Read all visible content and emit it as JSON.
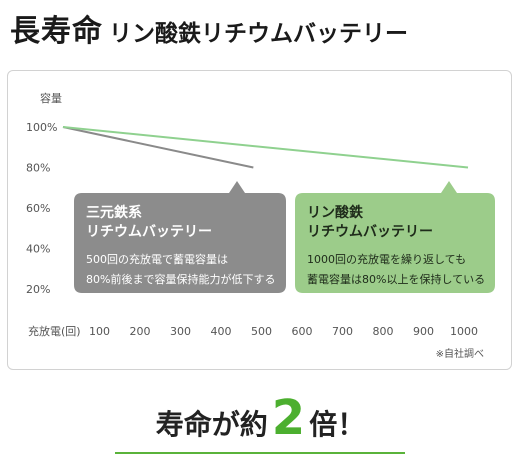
{
  "header": {
    "title_main": "長寿命",
    "title_sub": "リン酸鉄リチウムバッテリー"
  },
  "colors": {
    "green_line": "#8fd18f",
    "gray_line": "#8a8a8a",
    "gray_box": "#8c8c8c",
    "green_box": "#9ccc8a",
    "accent_green": "#4caf2f",
    "axis_text": "#555555"
  },
  "chart_data": {
    "type": "line",
    "ylabel": "容量",
    "xlabel": "充放電(回)",
    "x_ticks": [
      100,
      200,
      300,
      400,
      500,
      600,
      700,
      800,
      900,
      1000
    ],
    "y_ticks": [
      "100%",
      "80%",
      "60%",
      "40%",
      "20%"
    ],
    "y_tick_values": [
      100,
      80,
      60,
      40,
      20
    ],
    "xlim": [
      0,
      1000
    ],
    "ylim": [
      20,
      100
    ],
    "grid": false,
    "series": [
      {
        "name": "三元鉄系リチウムバッテリー",
        "color": "#8a8a8a",
        "points": [
          [
            0,
            100
          ],
          [
            470,
            80
          ]
        ]
      },
      {
        "name": "リン酸鉄リチウムバッテリー",
        "color": "#8fd18f",
        "points": [
          [
            0,
            100
          ],
          [
            1000,
            80
          ]
        ]
      }
    ],
    "annotations": {
      "gray_box": {
        "title_line1": "三元鉄系",
        "title_line2": "リチウムバッテリー",
        "body_line1": "500回の充放電で蓄電容量は",
        "body_line2": "80%前後まで容量保持能力が低下する"
      },
      "green_box": {
        "title_line1": "リン酸鉄",
        "title_line2": "リチウムバッテリー",
        "body_line1": "1000回の充放電を繰り返しても",
        "body_line2": "蓄電容量は80%以上を保持している"
      },
      "source_note": "※自社調べ"
    }
  },
  "footer": {
    "slogan_part1": "寿命が約",
    "slogan_number": "2",
    "slogan_part2": "倍！"
  }
}
